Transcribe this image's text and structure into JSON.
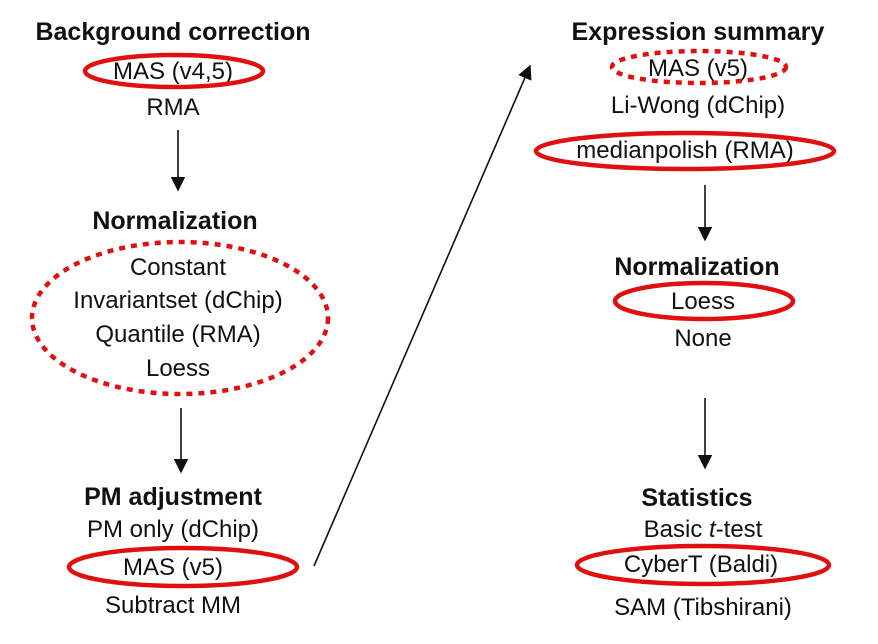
{
  "left": {
    "background": {
      "title": "Background correction",
      "items": [
        "MAS (v4,5)",
        "RMA"
      ]
    },
    "normalization": {
      "title": "Normalization",
      "items": [
        "Constant",
        "Invariantset (dChip)",
        "Quantile (RMA)",
        "Loess"
      ]
    },
    "pm": {
      "title": "PM adjustment",
      "items": [
        "PM only (dChip)",
        "MAS (v5)",
        "Subtract MM"
      ]
    }
  },
  "right": {
    "expression": {
      "title": "Expression summary",
      "items": [
        "MAS (v5)",
        "Li-Wong (dChip)",
        "medianpolish (RMA)"
      ]
    },
    "normalization": {
      "title": "Normalization",
      "items": [
        "Loess",
        "None"
      ]
    },
    "statistics": {
      "title": "Statistics",
      "basic_prefix": "Basic ",
      "basic_t": "t",
      "basic_suffix": "-test",
      "items": [
        "CyberT (Baldi)",
        "SAM (Tibshirani)"
      ]
    }
  },
  "colors": {
    "highlight": "#e01010",
    "text": "#111111"
  }
}
